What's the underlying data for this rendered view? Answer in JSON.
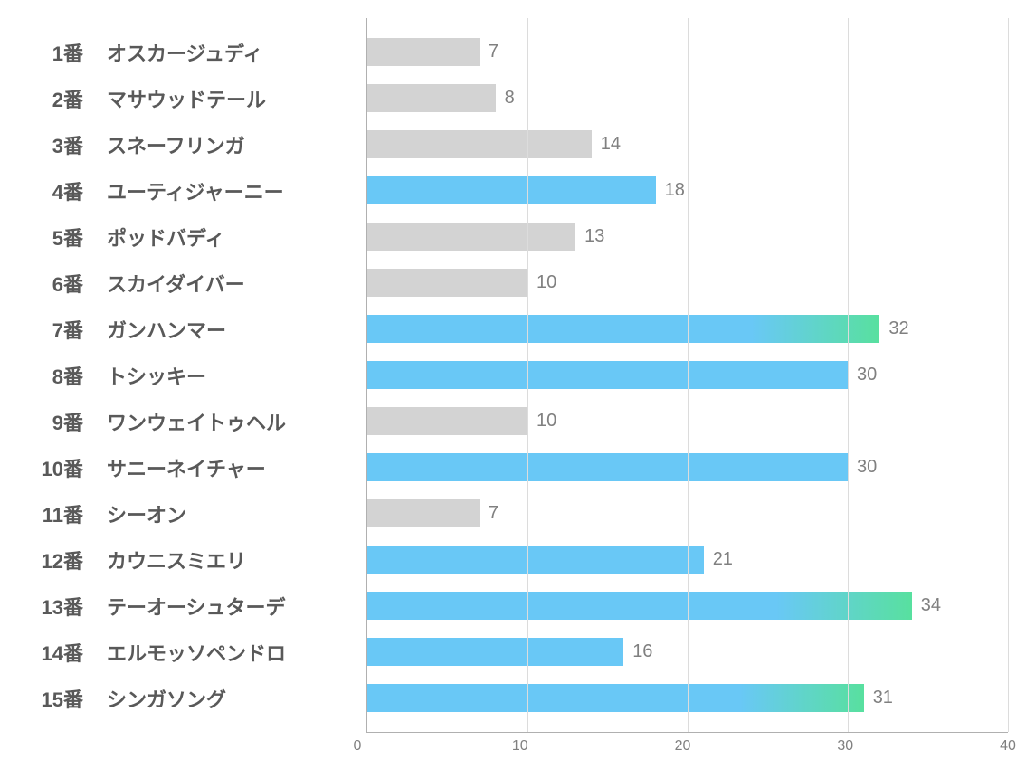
{
  "chart": {
    "type": "bar",
    "orientation": "horizontal",
    "xlim": [
      0,
      40
    ],
    "xtick_step": 10,
    "xticks": [
      0,
      10,
      20,
      30,
      40
    ],
    "background_color": "#ffffff",
    "grid_color": "#dcdcdc",
    "axis_color": "#b0b0b0",
    "label_fontsize": 22,
    "label_color": "#595959",
    "value_fontsize": 20,
    "value_color": "#808080",
    "tick_fontsize": 16,
    "tick_color": "#808080",
    "bar_colors": {
      "gray": "#d3d3d3",
      "blue": "#69c8f6",
      "gradient_end": "#58e09f"
    },
    "rows": [
      {
        "num": "1番",
        "name": "オスカージュディ",
        "value": 7,
        "style": "gray"
      },
      {
        "num": "2番",
        "name": "マサウッドテール",
        "value": 8,
        "style": "gray"
      },
      {
        "num": "3番",
        "name": "スネーフリンガ",
        "value": 14,
        "style": "gray"
      },
      {
        "num": "4番",
        "name": "ユーティジャーニー",
        "value": 18,
        "style": "blue"
      },
      {
        "num": "5番",
        "name": "ポッドバディ",
        "value": 13,
        "style": "gray"
      },
      {
        "num": "6番",
        "name": "スカイダイバー",
        "value": 10,
        "style": "gray"
      },
      {
        "num": "7番",
        "name": "ガンハンマー",
        "value": 32,
        "style": "grad"
      },
      {
        "num": "8番",
        "name": "トシッキー",
        "value": 30,
        "style": "blue"
      },
      {
        "num": "9番",
        "name": "ワンウェイトゥヘル",
        "value": 10,
        "style": "gray"
      },
      {
        "num": "10番",
        "name": "サニーネイチャー",
        "value": 30,
        "style": "blue"
      },
      {
        "num": "11番",
        "name": "シーオン",
        "value": 7,
        "style": "gray"
      },
      {
        "num": "12番",
        "name": "カウニスミエリ",
        "value": 21,
        "style": "blue"
      },
      {
        "num": "13番",
        "name": "テーオーシュターデ",
        "value": 34,
        "style": "grad"
      },
      {
        "num": "14番",
        "name": "エルモッソペンドロ",
        "value": 16,
        "style": "blue"
      },
      {
        "num": "15番",
        "name": "シンガソング",
        "value": 31,
        "style": "grad"
      }
    ]
  }
}
